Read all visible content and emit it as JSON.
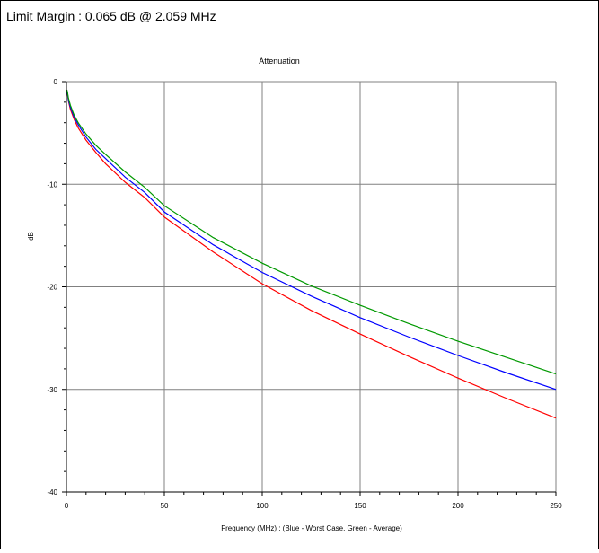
{
  "header": {
    "text": "Limit Margin : 0.065 dB @ 2.059 MHz"
  },
  "chart_data": {
    "type": "line",
    "title": "Attenuation",
    "xlabel": "Frequency (MHz) : (Blue - Worst Case, Green - Average)",
    "ylabel": "dB",
    "xlim": [
      0,
      250
    ],
    "ylim": [
      -40,
      0
    ],
    "xticks": [
      0,
      50,
      100,
      150,
      200,
      250
    ],
    "yticks": [
      0,
      -10,
      -20,
      -30,
      -40
    ],
    "grid": true,
    "x": [
      0.5,
      1,
      2,
      4,
      6,
      10,
      15,
      20,
      30,
      40,
      50,
      75,
      100,
      125,
      150,
      175,
      200,
      225,
      250
    ],
    "series": [
      {
        "color": "#ff0000",
        "values": [
          -1.2,
          -1.9,
          -2.7,
          -3.7,
          -4.5,
          -5.7,
          -6.9,
          -8.0,
          -9.8,
          -11.3,
          -13.2,
          -16.6,
          -19.7,
          -22.3,
          -24.6,
          -26.8,
          -28.9,
          -30.9,
          -32.8
        ]
      },
      {
        "color": "#0000ff",
        "values": [
          -1.1,
          -1.8,
          -2.5,
          -3.5,
          -4.2,
          -5.4,
          -6.6,
          -7.5,
          -9.3,
          -10.8,
          -12.7,
          -15.9,
          -18.6,
          -20.9,
          -23.0,
          -24.9,
          -26.7,
          -28.4,
          -30.0
        ]
      },
      {
        "color": "#009900",
        "values": [
          -1.0,
          -1.6,
          -2.3,
          -3.3,
          -4.0,
          -5.1,
          -6.2,
          -7.1,
          -8.8,
          -10.3,
          -12.1,
          -15.2,
          -17.7,
          -19.9,
          -21.8,
          -23.6,
          -25.3,
          -26.9,
          -28.5
        ]
      }
    ]
  }
}
